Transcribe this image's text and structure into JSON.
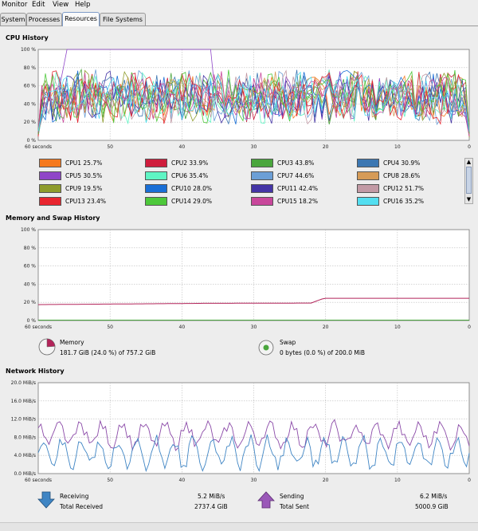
{
  "menu": [
    "Monitor",
    "Edit",
    "View",
    "Help"
  ],
  "tabs": [
    {
      "label": "System",
      "active": false
    },
    {
      "label": "Processes",
      "active": false
    },
    {
      "label": "Resources",
      "active": true
    },
    {
      "label": "File Systems",
      "active": false
    }
  ],
  "cpu": {
    "title": "CPU History",
    "y_ticks": [
      "100 %",
      "80 %",
      "60 %",
      "40 %",
      "20 %",
      "0 %"
    ],
    "x_ticks": [
      "60 seconds",
      "50",
      "40",
      "30",
      "20",
      "10",
      "0"
    ],
    "legend": [
      {
        "label": "CPU1  25.7%",
        "color": "#f5791e"
      },
      {
        "label": "CPU2  33.9%",
        "color": "#cf1d3c"
      },
      {
        "label": "CPU3  43.8%",
        "color": "#4aa63d"
      },
      {
        "label": "CPU4  30.9%",
        "color": "#3c77b2"
      },
      {
        "label": "CPU5  30.5%",
        "color": "#8f45c8"
      },
      {
        "label": "CPU6  35.4%",
        "color": "#5ef5c4"
      },
      {
        "label": "CPU7  44.6%",
        "color": "#6c9fd6"
      },
      {
        "label": "CPU8  28.6%",
        "color": "#d69b57"
      },
      {
        "label": "CPU9  19.5%",
        "color": "#8e9c2c"
      },
      {
        "label": "CPU10  28.0%",
        "color": "#1a6fd6"
      },
      {
        "label": "CPU11  42.4%",
        "color": "#4435a6"
      },
      {
        "label": "CPU12  51.7%",
        "color": "#c29aa5"
      },
      {
        "label": "CPU13  23.4%",
        "color": "#e8252e"
      },
      {
        "label": "CPU14  29.0%",
        "color": "#4dc83a"
      },
      {
        "label": "CPU15  18.2%",
        "color": "#c8479b"
      },
      {
        "label": "CPU16  35.2%",
        "color": "#53def0"
      }
    ]
  },
  "memory": {
    "title": "Memory and Swap History",
    "y_ticks": [
      "100 %",
      "80 %",
      "60 %",
      "40 %",
      "20 %",
      "0 %"
    ],
    "x_ticks": [
      "60 seconds",
      "50",
      "40",
      "30",
      "20",
      "10",
      "0"
    ],
    "memory_label": "Memory",
    "memory_value": "181.7 GiB (24.0 %) of 757.2 GiB",
    "memory_fraction": 0.24,
    "swap_label": "Swap",
    "swap_value": "0 bytes (0.0 %) of 200.0 MiB",
    "memory_color": "#b3245a",
    "swap_color": "#4aa63d"
  },
  "network": {
    "title": "Network History",
    "y_ticks": [
      "20.0 MiB/s",
      "16.0 MiB/s",
      "12.0 MiB/s",
      "8.0 MiB/s",
      "4.0 MiB/s",
      "0.0 MiB/s"
    ],
    "x_ticks": [
      "60 seconds",
      "50",
      "40",
      "30",
      "20",
      "10",
      "0"
    ],
    "receiving_label": "Receiving",
    "receiving_value": "5.2 MiB/s",
    "total_received_label": "Total Received",
    "total_received_value": "2737.4 GiB",
    "sending_label": "Sending",
    "sending_value": "6.2 MiB/s",
    "total_sent_label": "Total Sent",
    "total_sent_value": "5000.9 GiB",
    "receiving_color": "#3f85c4",
    "sending_color": "#8b4aa8"
  }
}
